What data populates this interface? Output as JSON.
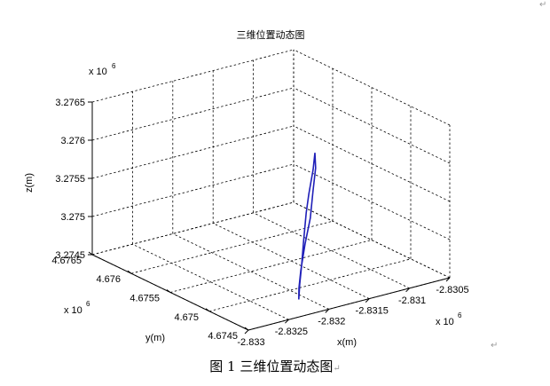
{
  "chart_data": {
    "type": "line3d",
    "title": "三维位置动态图",
    "xlabel": "x(m)",
    "ylabel": "y(m)",
    "zlabel": "z(m)",
    "x_exponent_label": "x 10",
    "x_exponent_power": "6",
    "y_exponent_label": "x 10",
    "y_exponent_power": "6",
    "z_exponent_label": "x 10",
    "z_exponent_power": "6",
    "xlim": [
      -2.833,
      -2.8305
    ],
    "ylim": [
      4.6745,
      4.6765
    ],
    "zlim": [
      3.2745,
      3.2765
    ],
    "x_ticks": [
      "-2.833",
      "-2.8325",
      "-2.832",
      "-2.8315",
      "-2.831",
      "-2.8305"
    ],
    "y_ticks": [
      "4.6745",
      "4.675",
      "4.6755",
      "4.676",
      "4.6765"
    ],
    "z_ticks": [
      "3.2745",
      "3.275",
      "3.2755",
      "3.276",
      "3.2765"
    ],
    "grid": true,
    "series": [
      {
        "color": "#1f1fb8",
        "x": [
          -2.83135,
          -2.83145,
          -2.83162,
          -2.83172,
          -2.83188,
          -2.83202,
          -2.83212,
          -2.83221,
          -2.83212,
          -2.832,
          -2.83182,
          -2.83165,
          -2.8315,
          -2.83138,
          -2.83135
        ],
        "y": [
          4.67535,
          4.67527,
          4.67515,
          4.67508,
          4.67495,
          4.67483,
          4.67475,
          4.67467,
          4.67476,
          4.67486,
          4.67499,
          4.6751,
          4.67522,
          4.67531,
          4.67535
        ],
        "z": [
          3.27595,
          3.2758,
          3.27558,
          3.2754,
          3.27512,
          3.2749,
          3.27474,
          3.2746,
          3.27468,
          3.27483,
          3.27507,
          3.2753,
          3.27555,
          3.27578,
          3.27595
        ]
      }
    ]
  },
  "caption": "图 1  三维位置动态图",
  "para_marks": {
    "top": "↵",
    "right": "↵",
    "caption": "↵"
  }
}
